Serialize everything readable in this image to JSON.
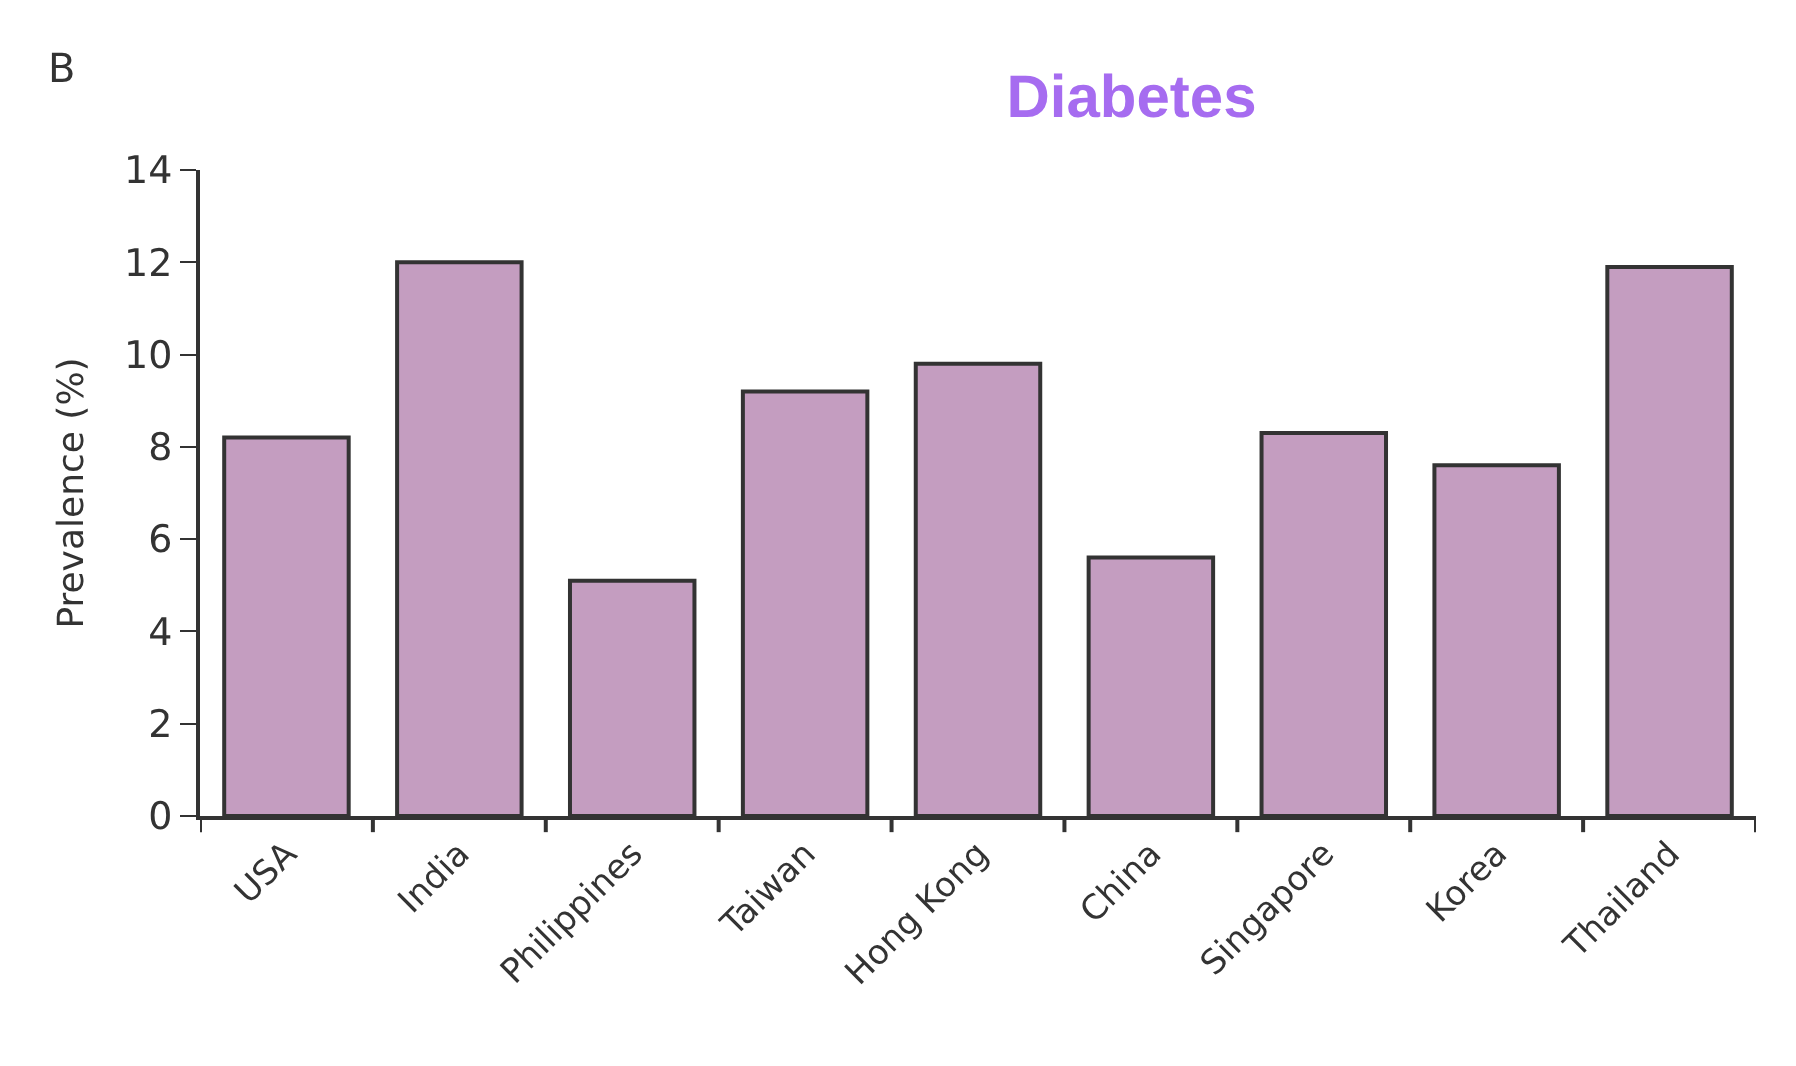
{
  "chart_data": {
    "type": "bar",
    "title": "Diabetes",
    "ylabel": "Prevalence (%)",
    "categories": [
      "USA",
      "India",
      "Philippines",
      "Taiwan",
      "Hong Kong",
      "China",
      "Singapore",
      "Korea",
      "Thailand"
    ],
    "values": [
      8.2,
      12.0,
      5.1,
      9.2,
      9.8,
      5.6,
      8.3,
      7.6,
      11.9
    ],
    "color": "#c49dc0",
    "ylim": [
      0,
      14
    ],
    "yticks": [
      0,
      2,
      4,
      6,
      8,
      10,
      12,
      14
    ],
    "legend": false,
    "annotations": [
      "B"
    ]
  }
}
